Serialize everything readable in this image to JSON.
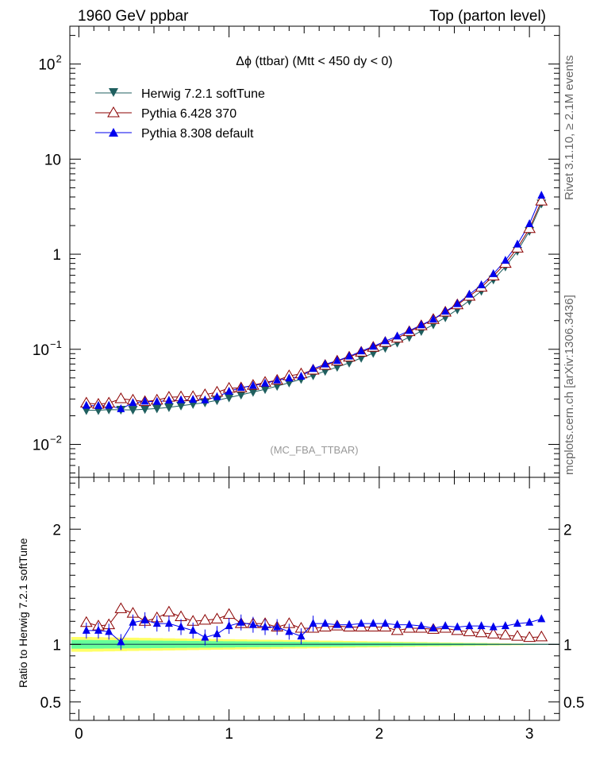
{
  "header": {
    "left": "1960 GeV ppbar",
    "right": "Top (parton level)"
  },
  "side_labels": {
    "rivet": "Rivet 3.1.10, ≥ 2.1M events",
    "mcplots": "mcplots.cern.ch [arXiv:1306.3436]"
  },
  "chart_data": [
    {
      "type": "line",
      "panel": "main",
      "title": "Δϕ (ttbar) (Mtt < 450 dy < 0)",
      "watermark": "(MC_FBA_TTBAR)",
      "yscale": "log",
      "xlim": [
        -0.06,
        3.2
      ],
      "ylim": [
        0.0045,
        250
      ],
      "x_ticks": [
        "0",
        "1",
        "2",
        "3"
      ],
      "y_ticks": [
        {
          "value": 0.01,
          "base": "10",
          "exp": "−2"
        },
        {
          "value": 0.1,
          "base": "10",
          "exp": "−1"
        },
        {
          "value": 1,
          "base": "1",
          "exp": ""
        },
        {
          "value": 10,
          "base": "10",
          "exp": ""
        },
        {
          "value": 100,
          "base": "10",
          "exp": "2"
        }
      ],
      "legend_position": "top-left",
      "x": [
        0.05,
        0.13,
        0.2,
        0.28,
        0.36,
        0.44,
        0.52,
        0.6,
        0.68,
        0.76,
        0.84,
        0.92,
        1.0,
        1.08,
        1.16,
        1.24,
        1.32,
        1.4,
        1.48,
        1.56,
        1.64,
        1.72,
        1.8,
        1.88,
        1.96,
        2.04,
        2.12,
        2.2,
        2.28,
        2.36,
        2.44,
        2.52,
        2.6,
        2.68,
        2.76,
        2.84,
        2.92,
        3.0,
        3.08
      ],
      "series": [
        {
          "name": "Herwig 7.2.1 softTune",
          "color": "#1f5f5f",
          "marker": "triangle-down-filled",
          "values": [
            0.0228,
            0.0228,
            0.0232,
            0.0231,
            0.023,
            0.0234,
            0.0238,
            0.0245,
            0.0255,
            0.0265,
            0.0275,
            0.029,
            0.031,
            0.0332,
            0.0355,
            0.038,
            0.041,
            0.0445,
            0.0485,
            0.053,
            0.059,
            0.065,
            0.072,
            0.081,
            0.091,
            0.103,
            0.117,
            0.134,
            0.155,
            0.182,
            0.216,
            0.262,
            0.325,
            0.41,
            0.54,
            0.74,
            1.08,
            1.75,
            3.4
          ]
        },
        {
          "name": "Pythia 6.428 370",
          "color": "#8b0000",
          "marker": "triangle-up-open",
          "values": [
            0.0272,
            0.0264,
            0.0272,
            0.0302,
            0.0292,
            0.0282,
            0.0292,
            0.0313,
            0.0316,
            0.0318,
            0.0333,
            0.0354,
            0.0389,
            0.0393,
            0.0418,
            0.0449,
            0.0472,
            0.0526,
            0.0551,
            0.0604,
            0.0678,
            0.0752,
            0.0828,
            0.0932,
            0.105,
            0.118,
            0.131,
            0.153,
            0.177,
            0.206,
            0.246,
            0.294,
            0.361,
            0.45,
            0.59,
            0.8,
            1.16,
            1.86,
            3.62
          ]
        },
        {
          "name": "Pythia 8.308 default",
          "color": "#0000ee",
          "marker": "triangle-up-filled",
          "values": [
            0.0256,
            0.0255,
            0.0256,
            0.0236,
            0.0273,
            0.0283,
            0.0281,
            0.029,
            0.0293,
            0.0296,
            0.0292,
            0.0316,
            0.036,
            0.0395,
            0.0415,
            0.0437,
            0.0472,
            0.0496,
            0.0518,
            0.0624,
            0.0696,
            0.0758,
            0.0843,
            0.0956,
            0.107,
            0.122,
            0.137,
            0.157,
            0.18,
            0.207,
            0.25,
            0.3,
            0.377,
            0.474,
            0.621,
            0.859,
            1.27,
            2.08,
            4.15
          ]
        }
      ]
    },
    {
      "type": "line",
      "panel": "ratio",
      "ylabel": "Ratio to Herwig 7.2.1 softTune",
      "ylim": [
        0.34,
        2.45
      ],
      "y_ticks": [
        "0.5",
        "1",
        "2"
      ],
      "x_ticks": [
        "0",
        "1",
        "2",
        "3"
      ],
      "reference": 1,
      "series": [
        {
          "name": "Pythia 6.428 370",
          "values": [
            1.19,
            1.16,
            1.17,
            1.31,
            1.27,
            1.2,
            1.23,
            1.28,
            1.24,
            1.2,
            1.21,
            1.22,
            1.26,
            1.18,
            1.18,
            1.18,
            1.15,
            1.18,
            1.14,
            1.14,
            1.15,
            1.16,
            1.15,
            1.15,
            1.15,
            1.15,
            1.12,
            1.14,
            1.14,
            1.13,
            1.14,
            1.12,
            1.11,
            1.1,
            1.09,
            1.08,
            1.07,
            1.06,
            1.065
          ]
        },
        {
          "name": "Pythia 8.308 default",
          "values": [
            1.12,
            1.12,
            1.11,
            1.02,
            1.19,
            1.21,
            1.18,
            1.18,
            1.15,
            1.12,
            1.06,
            1.09,
            1.16,
            1.19,
            1.17,
            1.15,
            1.15,
            1.11,
            1.07,
            1.18,
            1.18,
            1.17,
            1.17,
            1.18,
            1.18,
            1.18,
            1.17,
            1.17,
            1.16,
            1.14,
            1.16,
            1.15,
            1.16,
            1.16,
            1.15,
            1.16,
            1.18,
            1.19,
            1.22
          ]
        }
      ]
    }
  ]
}
